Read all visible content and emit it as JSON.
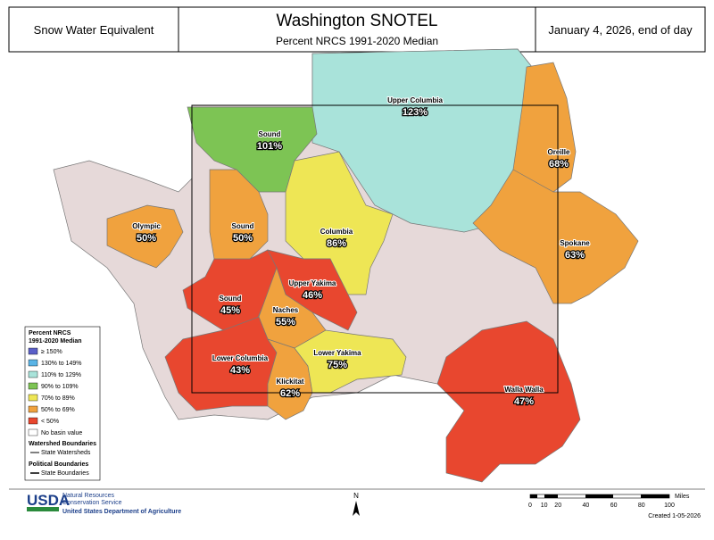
{
  "header": {
    "left": "Snow Water Equivalent",
    "title": "Washington SNOTEL",
    "subtitle": "Percent NRCS 1991-2020 Median",
    "right": "January 4, 2026, end of day"
  },
  "basins": [
    {
      "name": "Upper Columbia",
      "value": "123%"
    },
    {
      "name": "Sound",
      "value": "101%"
    },
    {
      "name": "Oreille",
      "value": "68%"
    },
    {
      "name": "Spokane",
      "value": "63%"
    },
    {
      "name": "Olympic",
      "value": "50%"
    },
    {
      "name": "Sound",
      "value": "50%"
    },
    {
      "name": "Columbia",
      "value": "86%"
    },
    {
      "name": "Sound",
      "value": "45%"
    },
    {
      "name": "Upper Yakima",
      "value": "46%"
    },
    {
      "name": "Naches",
      "value": "55%"
    },
    {
      "name": "Lower Columbia",
      "value": "43%"
    },
    {
      "name": "Klickitat",
      "value": "62%"
    },
    {
      "name": "Lower Yakima",
      "value": "75%"
    },
    {
      "name": "Walla Walla",
      "value": "47%"
    }
  ],
  "legend": {
    "title": [
      "Percent NRCS",
      "1991-2020 Median"
    ],
    "items": [
      "≥ 150%",
      "130% to 149%",
      "110% to 129%",
      "90% to 109%",
      "70% to 89%",
      "50% to 69%",
      "< 50%",
      "No basin value"
    ],
    "watershed_title": "Watershed Boundaries",
    "watershed_item": "State Watersheds",
    "political_title": "Political Boundaries",
    "political_item": "State Boundaries"
  },
  "footer": {
    "usda": "USDA",
    "agency": [
      "Natural Resources",
      "Conservation Service"
    ],
    "department": "United States Department of Agriculture",
    "north": "N",
    "scale_unit": "Miles",
    "scale_ticks": [
      0,
      10,
      20,
      40,
      60,
      80,
      100
    ],
    "created": "Created 1-05-2026"
  }
}
